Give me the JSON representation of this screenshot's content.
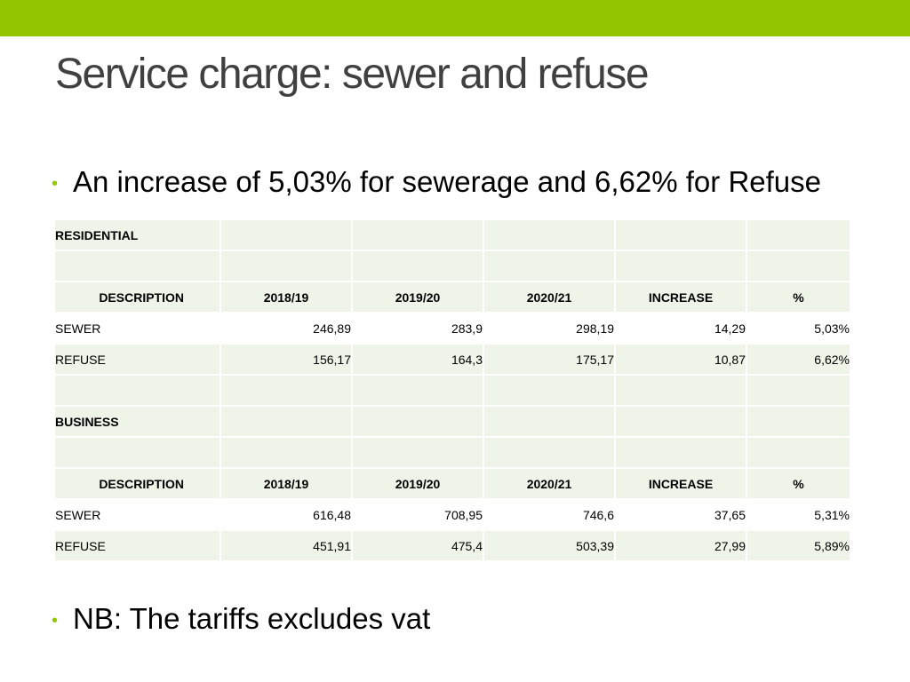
{
  "slide": {
    "title": "Service charge: sewer and refuse",
    "bullets": [
      "An increase of 5,03% for sewerage and 6,62% for Refuse",
      "NB: The tariffs excludes vat"
    ],
    "colors": {
      "accent_bar": "#94c600",
      "title": "#404040",
      "table_tint": "#eef4e8"
    }
  },
  "table": {
    "headers": [
      "DESCRIPTION",
      "2018/19",
      "2019/20",
      "2020/21",
      "INCREASE",
      "%"
    ],
    "residential": {
      "label": "RESIDENTIAL",
      "rows": [
        [
          "SEWER",
          "246,89",
          "283,9",
          "298,19",
          "14,29",
          "5,03%"
        ],
        [
          "REFUSE",
          "156,17",
          "164,3",
          "175,17",
          "10,87",
          "6,62%"
        ]
      ]
    },
    "business": {
      "label": "BUSINESS",
      "rows": [
        [
          "SEWER",
          "616,48",
          "708,95",
          "746,6",
          "37,65",
          "5,31%"
        ],
        [
          "REFUSE",
          "451,91",
          "475,4",
          "503,39",
          "27,99",
          "5,89%"
        ]
      ]
    }
  }
}
